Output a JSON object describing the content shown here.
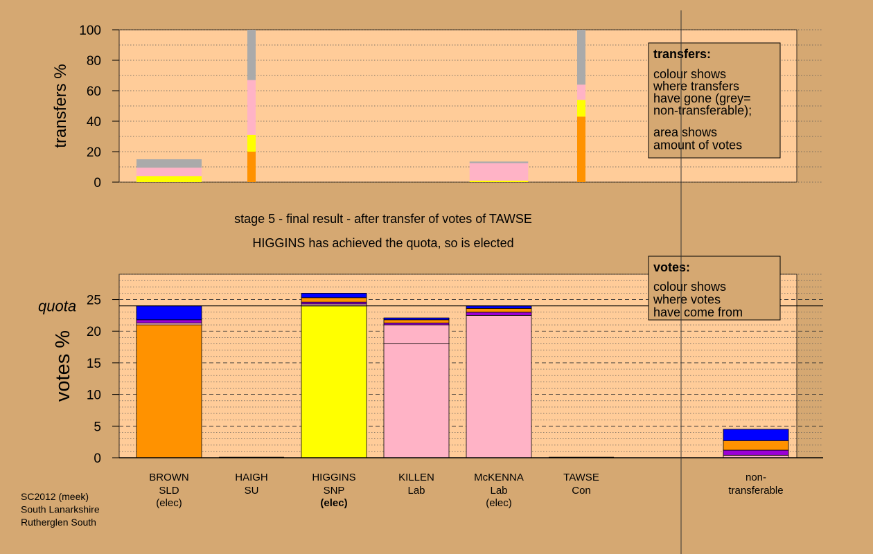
{
  "chart_data": [
    {
      "type": "bar",
      "id": "transfers",
      "ylabel": "transfers %",
      "ylim": [
        0,
        100
      ],
      "yticks": [
        0,
        20,
        40,
        60,
        80,
        100
      ],
      "columns": [
        {
          "candidate": "BROWN",
          "width_share": 15,
          "segments": [
            {
              "from": 0,
              "to": 4,
              "color": "#ffff00"
            },
            {
              "from": 4,
              "to": 9.5,
              "color": "#ffb3c6"
            },
            {
              "from": 9.5,
              "to": 15,
              "color": "#aaaaaa"
            }
          ]
        },
        {
          "candidate": "HAIGH",
          "width_share": 1,
          "segments": [
            {
              "from": 0,
              "to": 20,
              "color": "#ff9200"
            },
            {
              "from": 20,
              "to": 31,
              "color": "#ffff00"
            },
            {
              "from": 31,
              "to": 67,
              "color": "#ffb3c6"
            },
            {
              "from": 67,
              "to": 100,
              "color": "#aaaaaa"
            }
          ]
        },
        {
          "candidate": "HIGGINS",
          "width_share": 0,
          "segments": []
        },
        {
          "candidate": "KILLEN",
          "width_share": 0,
          "segments": []
        },
        {
          "candidate": "McKENNA",
          "width_share": 13.5,
          "segments": [
            {
              "from": 0,
              "to": 1,
              "color": "#ffff00"
            },
            {
              "from": 1,
              "to": 12.5,
              "color": "#ffb3c6"
            },
            {
              "from": 12.5,
              "to": 13.5,
              "color": "#aaaaaa"
            }
          ]
        },
        {
          "candidate": "TAWSE",
          "width_share": 1,
          "segments": [
            {
              "from": 0,
              "to": 43,
              "color": "#ff9200"
            },
            {
              "from": 43,
              "to": 54,
              "color": "#ffff00"
            },
            {
              "from": 54,
              "to": 64,
              "color": "#ffb3c6"
            },
            {
              "from": 64,
              "to": 100,
              "color": "#aaaaaa"
            }
          ]
        }
      ],
      "legend": {
        "title": "transfers:",
        "lines1": [
          "colour shows",
          "where transfers",
          "have gone (grey=",
          "non-transferable);"
        ],
        "lines2": [
          "area shows",
          "amount of votes"
        ]
      }
    },
    {
      "type": "bar",
      "id": "votes",
      "ylabel": "votes %",
      "ylim": [
        0,
        29
      ],
      "yticks": [
        0,
        5,
        10,
        15,
        20,
        25
      ],
      "quota": 24,
      "quota_label": "quota",
      "columns": [
        {
          "candidate": "BROWN",
          "segments": [
            {
              "from": 0,
              "to": 21,
              "color": "#ff9200"
            },
            {
              "from": 21,
              "to": 21.3,
              "color": "#ffb3c6"
            },
            {
              "from": 21.3,
              "to": 21.8,
              "color": "#9b00d6"
            },
            {
              "from": 21.8,
              "to": 24,
              "color": "#0000ff"
            }
          ]
        },
        {
          "candidate": "HAIGH",
          "segments": []
        },
        {
          "candidate": "HIGGINS",
          "segments": [
            {
              "from": 0,
              "to": 24,
              "color": "#ffff00"
            },
            {
              "from": 24,
              "to": 24.3,
              "color": "#ffb3c6"
            },
            {
              "from": 24.3,
              "to": 24.6,
              "color": "#9b00d6"
            },
            {
              "from": 24.6,
              "to": 25.3,
              "color": "#ff9200"
            },
            {
              "from": 25.3,
              "to": 26,
              "color": "#0000ff"
            }
          ]
        },
        {
          "candidate": "KILLEN",
          "segments": [
            {
              "from": 0,
              "to": 18,
              "color": "#ffb3c6"
            },
            {
              "from": 18,
              "to": 21,
              "color": "#ffb3c6"
            },
            {
              "from": 21,
              "to": 21.3,
              "color": "#9b00d6"
            },
            {
              "from": 21.3,
              "to": 21.8,
              "color": "#ff9200"
            },
            {
              "from": 21.8,
              "to": 22.1,
              "color": "#0000ff"
            }
          ]
        },
        {
          "candidate": "McKENNA",
          "segments": [
            {
              "from": 0,
              "to": 22.5,
              "color": "#ffb3c6"
            },
            {
              "from": 22.5,
              "to": 23,
              "color": "#9b00d6"
            },
            {
              "from": 23,
              "to": 23.6,
              "color": "#ff9200"
            },
            {
              "from": 23.6,
              "to": 24,
              "color": "#0000ff"
            }
          ]
        },
        {
          "candidate": "TAWSE",
          "segments": []
        },
        {
          "candidate": "non-transferable",
          "segments": [
            {
              "from": 0,
              "to": 0.4,
              "color": "#ffb3c6"
            },
            {
              "from": 0.4,
              "to": 1.2,
              "color": "#9b00d6"
            },
            {
              "from": 1.2,
              "to": 2.7,
              "color": "#ff9200"
            },
            {
              "from": 2.7,
              "to": 4.5,
              "color": "#0000ff"
            }
          ]
        }
      ],
      "legend": {
        "title": "votes:",
        "lines1": [
          "colour shows",
          "where votes",
          "have come from"
        ]
      }
    }
  ],
  "stage_title": "stage 5 - final result - after transfer of votes of TAWSE",
  "stage_subtitle": "HIGGINS has achieved the quota, so is elected",
  "candidates": [
    {
      "name": "BROWN",
      "party": "SLD",
      "status": "(elec)",
      "bold": false
    },
    {
      "name": "HAIGH",
      "party": "SU",
      "status": "",
      "bold": false
    },
    {
      "name": "HIGGINS",
      "party": "SNP",
      "status": "(elec)",
      "bold": true
    },
    {
      "name": "KILLEN",
      "party": "Lab",
      "status": "",
      "bold": false
    },
    {
      "name": "McKENNA",
      "party": "Lab",
      "status": "(elec)",
      "bold": false
    },
    {
      "name": "TAWSE",
      "party": "Con",
      "status": "",
      "bold": false
    }
  ],
  "nontransferable_label": [
    "non-",
    "transferable"
  ],
  "footer": [
    "SC2012 (meek)",
    "South Lanarkshire",
    "Rutherglen South"
  ],
  "colors": {
    "page_bg": "#d5a872",
    "plot_bg": "#ffcc99",
    "SNP": "#ffff00",
    "SLD": "#ff9200",
    "Lab": "#ffb3c6",
    "Con": "#0000ff",
    "SU": "#9b00d6",
    "nontransferable": "#aaaaaa"
  }
}
